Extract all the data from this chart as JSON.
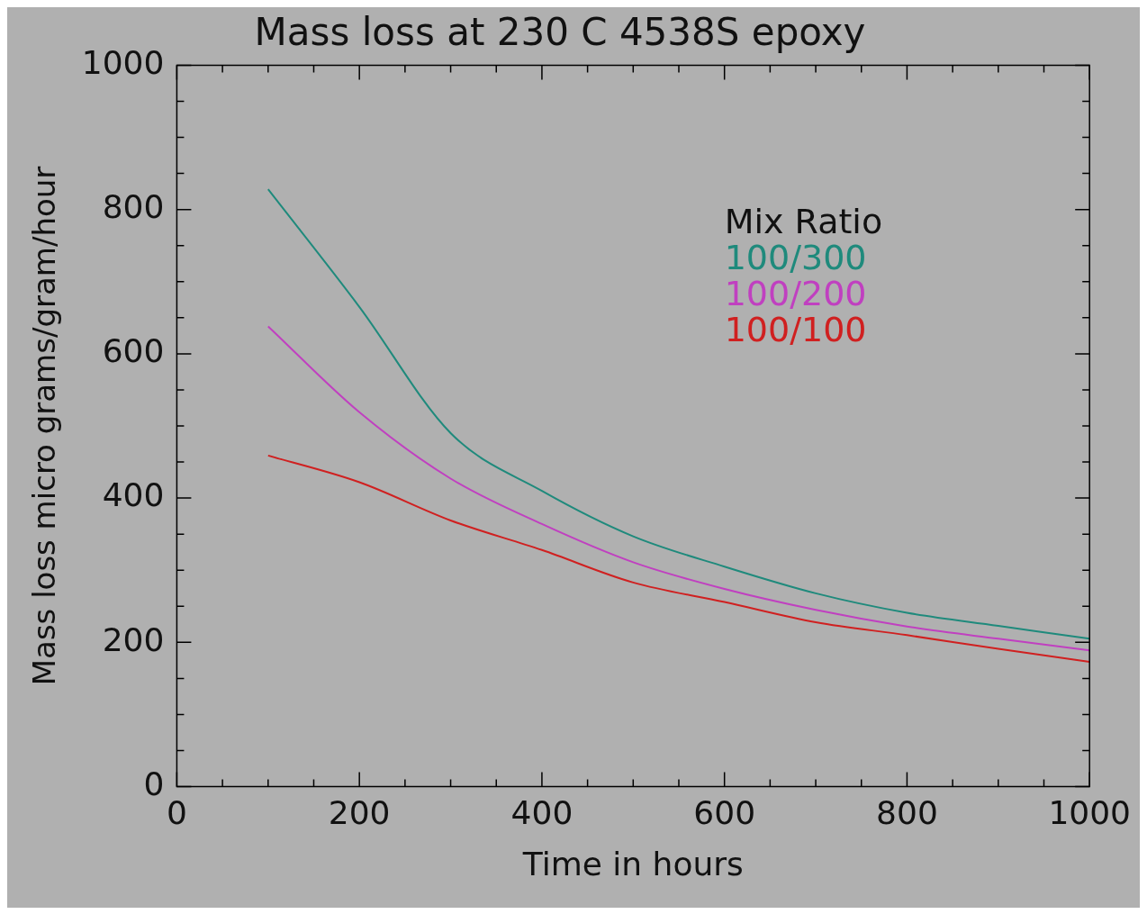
{
  "chart_data": {
    "type": "line",
    "title": "Mass loss at 230 C 4538S epoxy",
    "xlabel": "Time in hours",
    "ylabel": "Mass loss micro grams/gram/hour",
    "legend_title": "Mix Ratio",
    "legend": "top right",
    "grid": false,
    "marker": "none",
    "line_style": "solid",
    "x": [
      100,
      200,
      300,
      400,
      500,
      600,
      700,
      800,
      900,
      1000
    ],
    "xlim": [
      0,
      1000
    ],
    "ylim": [
      0,
      1000
    ],
    "xticks": [
      0,
      {
        "value": 50,
        "label": null
      },
      {
        "value": 100,
        "label": null
      },
      {
        "value": 150,
        "label": null
      },
      200,
      {
        "value": 250,
        "label": null
      },
      {
        "value": 300,
        "label": null
      },
      {
        "value": 350,
        "label": null
      },
      400,
      {
        "value": 450,
        "label": null
      },
      {
        "value": 500,
        "label": null
      },
      {
        "value": 550,
        "label": null
      },
      600,
      {
        "value": 650,
        "label": null
      },
      {
        "value": 700,
        "label": null
      },
      {
        "value": 750,
        "label": null
      },
      800,
      {
        "value": 850,
        "label": null
      },
      {
        "value": 900,
        "label": null
      },
      {
        "value": 950,
        "label": null
      },
      1000
    ],
    "yticks": [
      0,
      {
        "value": 50,
        "label": null
      },
      {
        "value": 100,
        "label": null
      },
      {
        "value": 150,
        "label": null
      },
      200,
      {
        "value": 250,
        "label": null
      },
      {
        "value": 300,
        "label": null
      },
      {
        "value": 350,
        "label": null
      },
      400,
      {
        "value": 450,
        "label": null
      },
      {
        "value": 500,
        "label": null
      },
      {
        "value": 550,
        "label": null
      },
      600,
      {
        "value": 650,
        "label": null
      },
      {
        "value": 700,
        "label": null
      },
      {
        "value": 750,
        "label": null
      },
      800,
      {
        "value": 850,
        "label": null
      },
      {
        "value": 900,
        "label": null
      },
      {
        "value": 950,
        "label": null
      },
      1000
    ],
    "series": [
      {
        "name": "100/300",
        "color": "#1f8a7c",
        "values": [
          828,
          665,
          490,
          410,
          347,
          305,
          268,
          241,
          223,
          205
        ]
      },
      {
        "name": "100/200",
        "color": "#c040c0",
        "values": [
          638,
          519,
          427,
          364,
          311,
          274,
          245,
          222,
          205,
          189
        ]
      },
      {
        "name": "100/100",
        "color": "#d02020",
        "values": [
          459,
          422,
          369,
          328,
          283,
          256,
          228,
          210,
          191,
          173
        ]
      }
    ]
  }
}
